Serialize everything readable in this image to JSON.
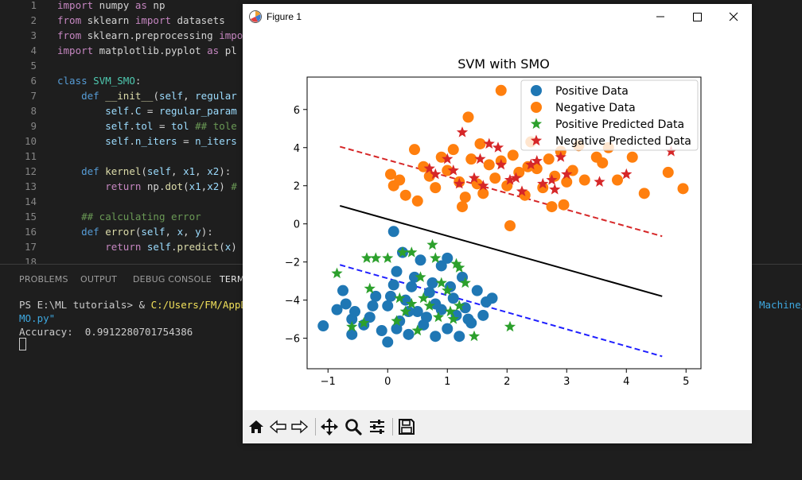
{
  "editor": {
    "line_numbers": [
      "1",
      "2",
      "3",
      "4",
      "5",
      "6",
      "7",
      "8",
      "9",
      "10",
      "11",
      "12",
      "13",
      "14",
      "15",
      "16",
      "17",
      "18"
    ]
  },
  "panel": {
    "tabs": [
      "PROBLEMS",
      "OUTPUT",
      "DEBUG CONSOLE",
      "TERM"
    ],
    "prompt": "PS E:\\ML tutorials> & ",
    "cmd_path": "C:/Users/FM/AppDat",
    "cmd_tail": "Machine/",
    "line2": "MO.py\"",
    "accuracy": "Accuracy:  0.9912280701754386"
  },
  "figure": {
    "window_title": "Figure 1",
    "colors": {
      "positive": "#1f77b4",
      "negative": "#ff7f0e",
      "pos_pred": "#2ca02c",
      "neg_pred": "#d62728"
    }
  },
  "chart_data": {
    "type": "scatter",
    "title": "SVM with SMO",
    "xlabel": "",
    "ylabel": "",
    "xlim": [
      -1.35,
      5.25
    ],
    "ylim": [
      -7.6,
      7.7
    ],
    "xticks": [
      -1,
      0,
      1,
      2,
      3,
      4,
      5
    ],
    "yticks": [
      -6,
      -4,
      -2,
      0,
      2,
      4,
      6
    ],
    "tick_labels_x": [
      "−1",
      "0",
      "1",
      "2",
      "3",
      "4",
      "5"
    ],
    "tick_labels_y": [
      "−6",
      "−4",
      "−2",
      "0",
      "2",
      "4",
      "6"
    ],
    "legend_position": "top-right",
    "legend": [
      "Positive Data",
      "Negative Data",
      "Positive Predicted Data",
      "Negative Predicted Data"
    ],
    "series": [
      {
        "name": "Positive Data",
        "marker": "circle",
        "points": [
          [
            -1.08,
            -5.35
          ],
          [
            -0.75,
            -3.5
          ],
          [
            -0.7,
            -4.2
          ],
          [
            -0.6,
            -5.0
          ],
          [
            -0.55,
            -4.6
          ],
          [
            -0.4,
            -5.3
          ],
          [
            -0.3,
            -4.9
          ],
          [
            -0.2,
            -3.8
          ],
          [
            -0.1,
            -5.6
          ],
          [
            0.0,
            -4.3
          ],
          [
            0.0,
            -6.2
          ],
          [
            0.1,
            -0.4
          ],
          [
            0.1,
            -3.2
          ],
          [
            0.15,
            -2.5
          ],
          [
            0.2,
            -5.1
          ],
          [
            0.3,
            -4.0
          ],
          [
            0.35,
            -5.8
          ],
          [
            0.4,
            -3.3
          ],
          [
            0.5,
            -4.6
          ],
          [
            0.6,
            -5.3
          ],
          [
            0.7,
            -3.6
          ],
          [
            0.8,
            -4.2
          ],
          [
            0.9,
            -2.2
          ],
          [
            1.0,
            -5.5
          ],
          [
            1.1,
            -3.9
          ],
          [
            1.15,
            -4.8
          ],
          [
            1.2,
            -5.9
          ],
          [
            1.25,
            -2.8
          ],
          [
            1.3,
            -4.4
          ],
          [
            1.4,
            -5.2
          ],
          [
            1.5,
            -3.5
          ],
          [
            1.6,
            -4.8
          ],
          [
            1.65,
            -4.1
          ],
          [
            1.75,
            -3.9
          ],
          [
            -0.6,
            -5.8
          ],
          [
            0.25,
            -1.5
          ],
          [
            0.55,
            -1.9
          ],
          [
            1.0,
            -1.8
          ],
          [
            0.8,
            -5.9
          ],
          [
            0.05,
            -3.8
          ],
          [
            0.45,
            -2.8
          ],
          [
            -0.25,
            -4.3
          ],
          [
            0.65,
            -4.9
          ],
          [
            0.9,
            -4.5
          ],
          [
            1.35,
            -5.0
          ],
          [
            -0.85,
            -4.5
          ],
          [
            0.15,
            -5.5
          ],
          [
            0.75,
            -3.1
          ],
          [
            1.05,
            -3.3
          ],
          [
            0.35,
            -4.6
          ]
        ]
      },
      {
        "name": "Negative Data",
        "marker": "circle",
        "points": [
          [
            1.9,
            7.0
          ],
          [
            0.45,
            3.9
          ],
          [
            0.05,
            2.6
          ],
          [
            0.1,
            2.0
          ],
          [
            0.3,
            1.5
          ],
          [
            0.5,
            1.2
          ],
          [
            0.7,
            2.5
          ],
          [
            0.9,
            3.5
          ],
          [
            1.0,
            2.8
          ],
          [
            1.1,
            3.9
          ],
          [
            1.2,
            2.2
          ],
          [
            1.3,
            1.4
          ],
          [
            1.35,
            5.6
          ],
          [
            1.4,
            3.4
          ],
          [
            1.5,
            2.1
          ],
          [
            1.6,
            1.6
          ],
          [
            1.7,
            3.1
          ],
          [
            1.8,
            2.4
          ],
          [
            1.9,
            3.3
          ],
          [
            2.0,
            2.0
          ],
          [
            2.05,
            -0.1
          ],
          [
            2.1,
            3.6
          ],
          [
            2.2,
            2.7
          ],
          [
            2.3,
            1.5
          ],
          [
            2.4,
            4.3
          ],
          [
            2.5,
            2.9
          ],
          [
            2.6,
            1.9
          ],
          [
            2.7,
            3.4
          ],
          [
            2.75,
            0.9
          ],
          [
            2.8,
            2.5
          ],
          [
            2.9,
            3.8
          ],
          [
            3.0,
            2.2
          ],
          [
            3.1,
            2.8
          ],
          [
            3.2,
            4.1
          ],
          [
            3.3,
            2.3
          ],
          [
            3.5,
            3.5
          ],
          [
            3.6,
            3.2
          ],
          [
            3.7,
            4.0
          ],
          [
            3.85,
            2.3
          ],
          [
            4.1,
            3.5
          ],
          [
            4.3,
            1.6
          ],
          [
            4.7,
            2.7
          ],
          [
            4.95,
            1.85
          ],
          [
            0.6,
            3.0
          ],
          [
            0.8,
            1.9
          ],
          [
            1.25,
            0.9
          ],
          [
            2.35,
            3.0
          ],
          [
            2.95,
            1.0
          ],
          [
            1.55,
            4.2
          ],
          [
            0.2,
            2.3
          ]
        ]
      },
      {
        "name": "Positive Predicted Data",
        "marker": "star",
        "points": [
          [
            -0.85,
            -2.6
          ],
          [
            -0.35,
            -1.8
          ],
          [
            -0.2,
            -1.8
          ],
          [
            0.0,
            -1.8
          ],
          [
            0.25,
            -1.5
          ],
          [
            0.4,
            -1.5
          ],
          [
            0.75,
            -1.1
          ],
          [
            0.8,
            -1.8
          ],
          [
            1.15,
            -2.1
          ],
          [
            1.2,
            -2.3
          ],
          [
            1.45,
            -5.9
          ],
          [
            2.05,
            -5.4
          ],
          [
            -0.6,
            -5.4
          ],
          [
            -0.4,
            -5.2
          ],
          [
            0.2,
            -3.9
          ],
          [
            0.3,
            -4.6
          ],
          [
            0.5,
            -5.6
          ],
          [
            0.6,
            -3.9
          ],
          [
            0.7,
            -4.3
          ],
          [
            0.85,
            -4.9
          ],
          [
            1.0,
            -3.5
          ],
          [
            1.1,
            -5.0
          ],
          [
            1.2,
            -4.3
          ],
          [
            1.3,
            -3.1
          ],
          [
            -0.3,
            -3.4
          ],
          [
            0.55,
            -2.8
          ],
          [
            0.9,
            -3.1
          ],
          [
            1.05,
            -4.6
          ],
          [
            0.15,
            -5.1
          ],
          [
            0.4,
            -4.2
          ]
        ]
      },
      {
        "name": "Negative Predicted Data",
        "marker": "star",
        "points": [
          [
            1.25,
            4.8
          ],
          [
            1.7,
            4.2
          ],
          [
            1.85,
            4.0
          ],
          [
            2.4,
            3.1
          ],
          [
            2.9,
            3.5
          ],
          [
            3.0,
            2.6
          ],
          [
            3.55,
            2.2
          ],
          [
            4.0,
            2.6
          ],
          [
            4.75,
            3.8
          ],
          [
            0.8,
            2.6
          ],
          [
            1.0,
            3.4
          ],
          [
            1.2,
            2.1
          ],
          [
            1.45,
            2.4
          ],
          [
            1.6,
            2.0
          ],
          [
            1.9,
            3.1
          ],
          [
            2.15,
            2.4
          ],
          [
            2.25,
            1.7
          ],
          [
            2.6,
            2.1
          ],
          [
            2.75,
            2.3
          ],
          [
            1.1,
            2.8
          ],
          [
            0.7,
            2.9
          ],
          [
            2.05,
            2.3
          ],
          [
            2.5,
            3.3
          ],
          [
            1.55,
            3.4
          ],
          [
            2.8,
            1.8
          ]
        ]
      }
    ],
    "lines": [
      {
        "name": "hyperplane",
        "style": "solid",
        "color": "#000000",
        "x": [
          -0.8,
          4.6
        ],
        "y": [
          0.95,
          -3.8
        ]
      },
      {
        "name": "positive-margin",
        "style": "dashed",
        "color": "#d62728",
        "x": [
          -0.8,
          4.6
        ],
        "y": [
          4.05,
          -0.65
        ]
      },
      {
        "name": "negative-margin",
        "style": "dashed",
        "color": "#1f1fff",
        "x": [
          -0.8,
          4.6
        ],
        "y": [
          -2.15,
          -6.95
        ]
      }
    ]
  }
}
